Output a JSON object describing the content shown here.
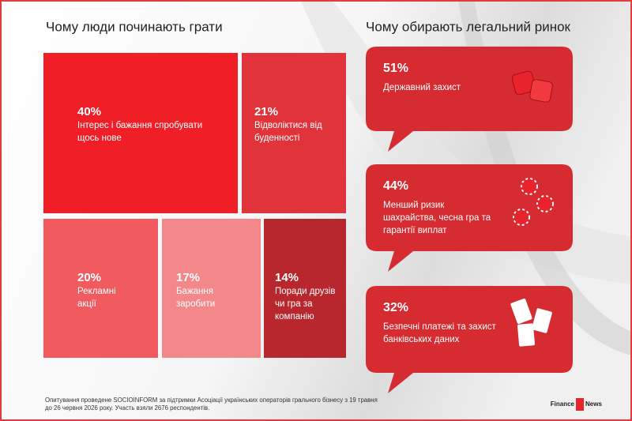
{
  "treemap": {
    "title": "Чому люди починають грати",
    "tiles": [
      {
        "value": "40%",
        "label": [
          "Інтерес і бажання спробувати",
          "щось нове"
        ]
      },
      {
        "value": "21%",
        "label": [
          "Відволіктися від",
          "буденності"
        ]
      },
      {
        "value": "20%",
        "label": [
          "Рекламні",
          "акції"
        ]
      },
      {
        "value": "17%",
        "label": [
          "Бажання",
          "заробити"
        ]
      },
      {
        "value": "14%",
        "label": [
          "Поради друзів",
          "чи гра за",
          "компанію"
        ]
      }
    ]
  },
  "reasons": {
    "title": "Чому обирають легальний ринок",
    "items": [
      {
        "value": "51%",
        "label": [
          "Державний захист"
        ]
      },
      {
        "value": "44%",
        "label": [
          "Менший ризик",
          "шахрайства, чесна гра та",
          "гарантії виплат"
        ]
      },
      {
        "value": "32%",
        "label": [
          "Безпечні платежі та захист",
          "банківських даних"
        ]
      }
    ]
  },
  "footer": {
    "note": [
      "Опитування проведене SOCIOINFORM за підтримки Асоціації українських операторів грального бізнесу з 19 травня",
      "до 26 червня 2026 року. Участь взяли 2676 респондентів."
    ],
    "logo": [
      "Finance",
      "News"
    ]
  }
}
